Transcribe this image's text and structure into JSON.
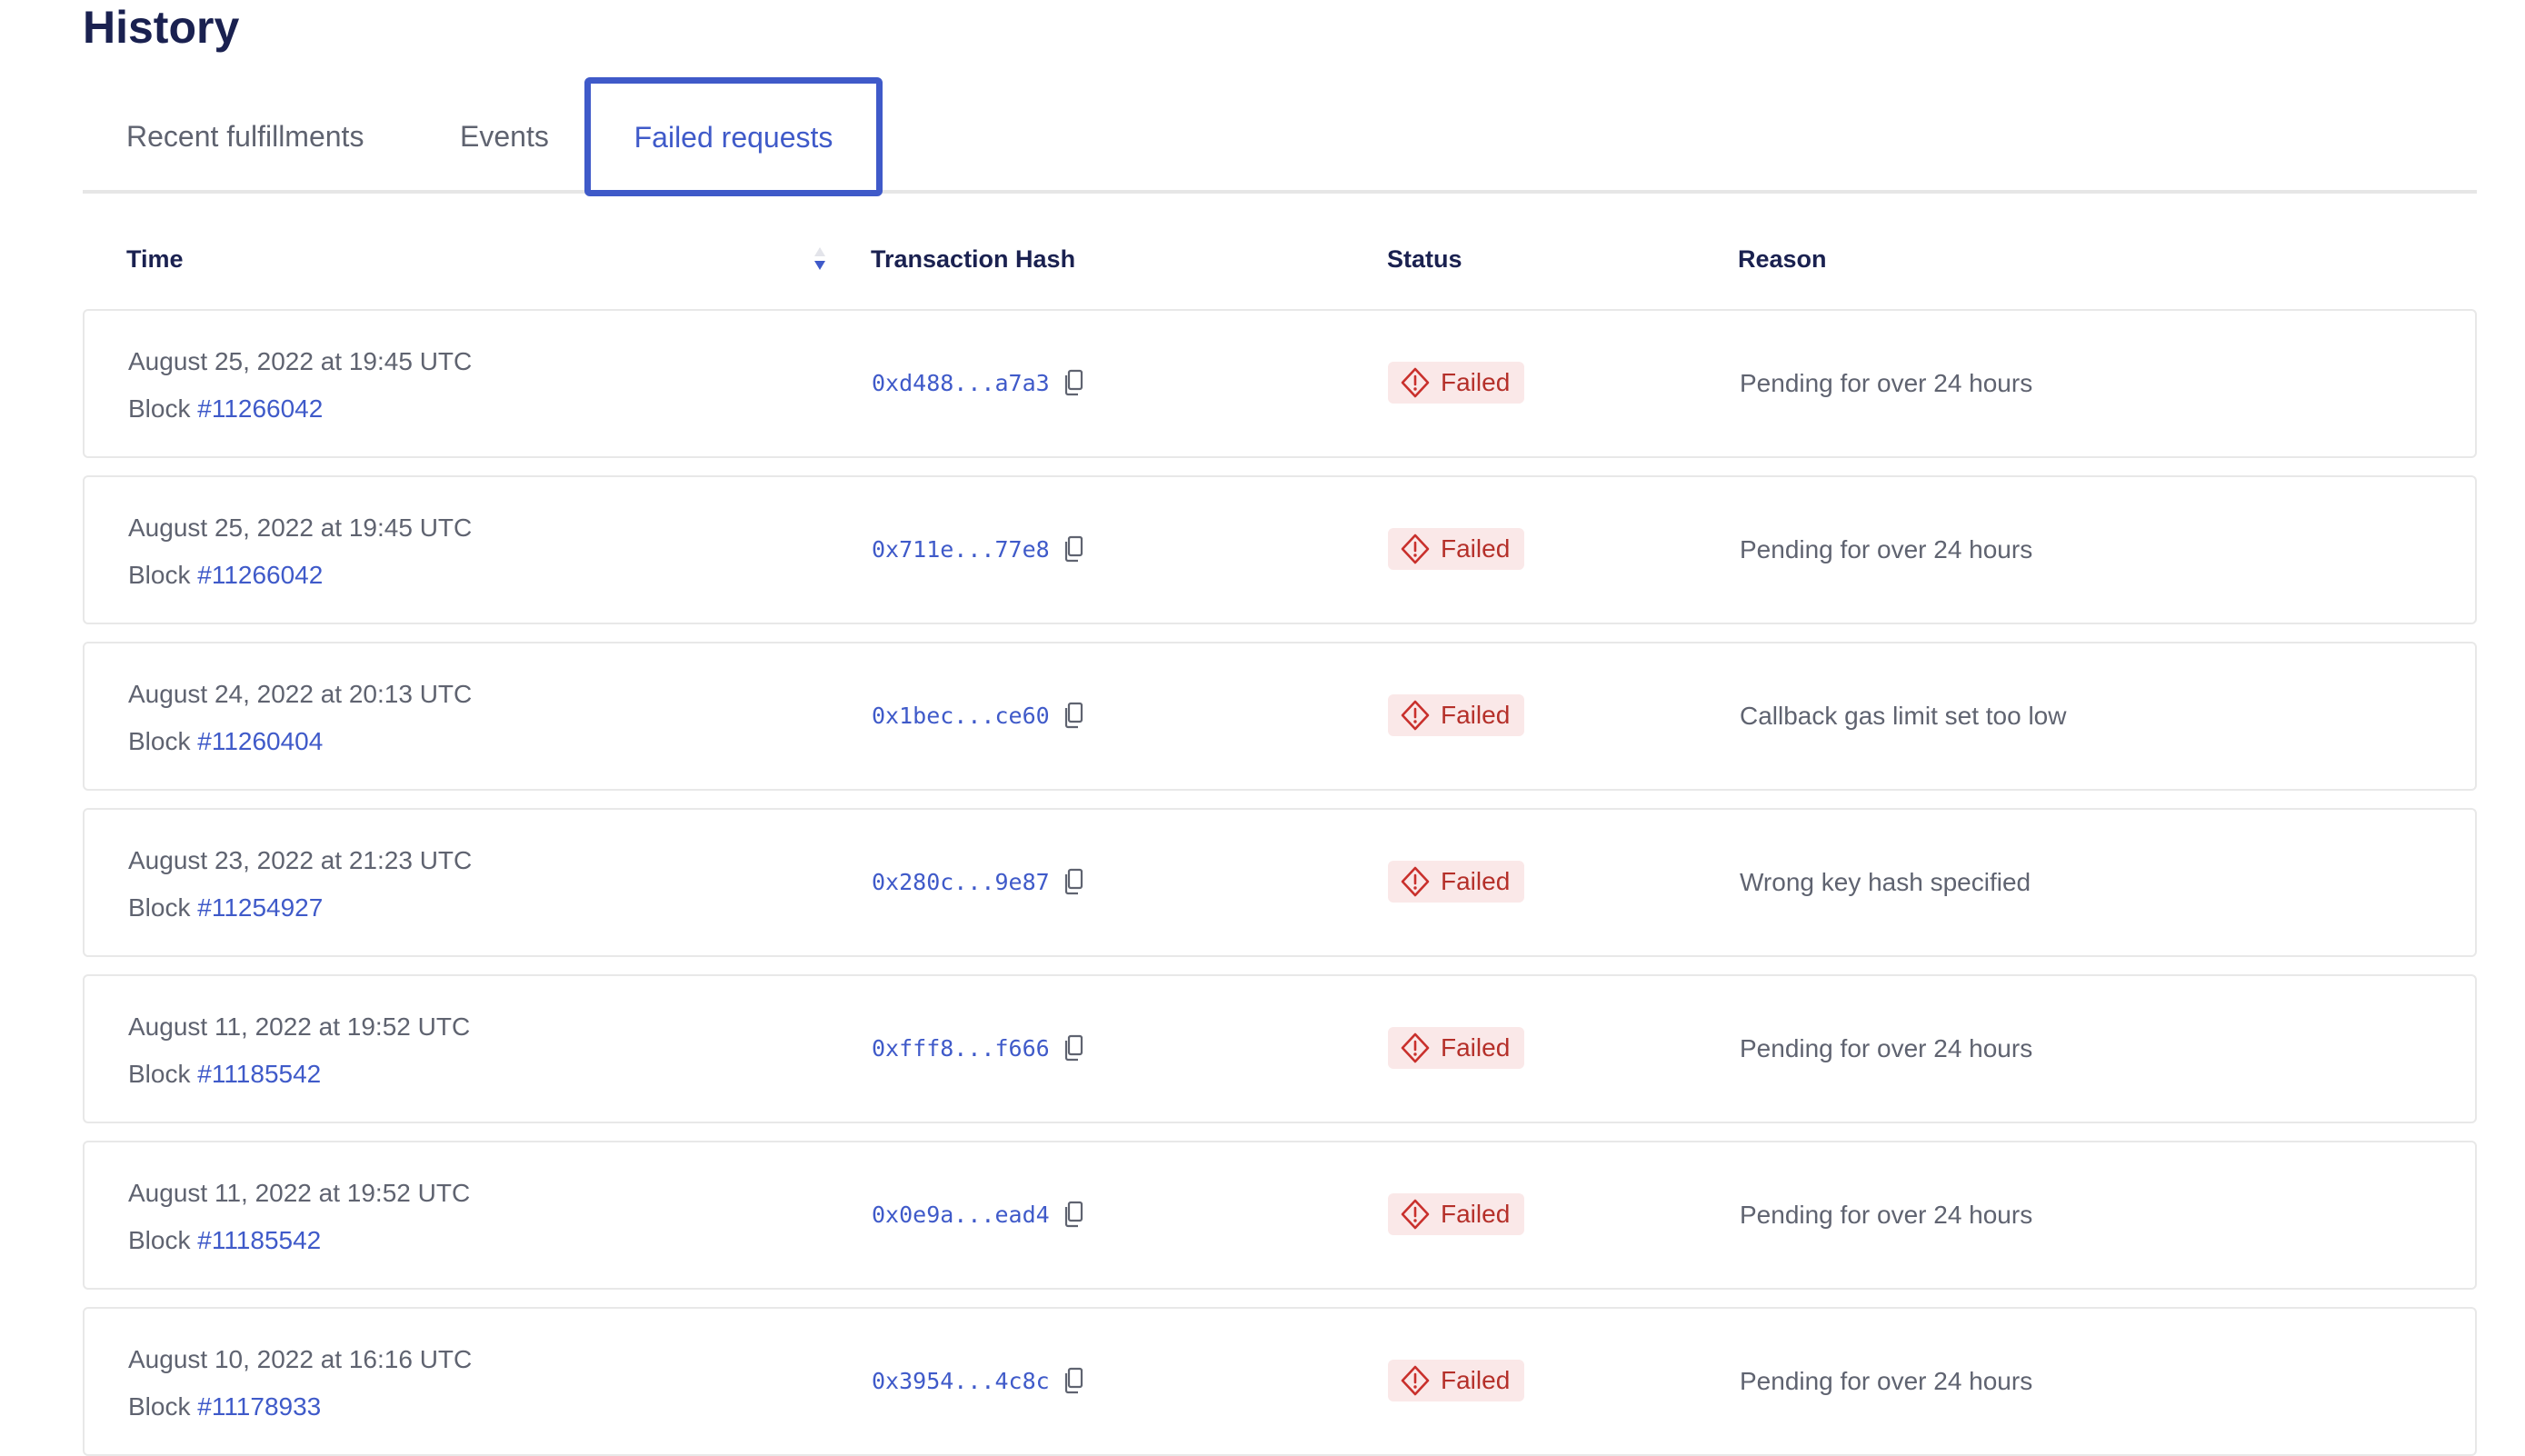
{
  "page": {
    "title": "History"
  },
  "tabs": [
    {
      "label": "Recent fulfillments"
    },
    {
      "label": "Events"
    },
    {
      "label": "Failed requests",
      "active": true
    }
  ],
  "table": {
    "headers": {
      "time": "Time",
      "hash": "Transaction Hash",
      "status": "Status",
      "reason": "Reason"
    },
    "sort": {
      "column": "Time",
      "direction": "descending"
    },
    "block_prefix": "Block",
    "rows": [
      {
        "date": "August 25, 2022 at 19:45 UTC",
        "block": "#11266042",
        "hash": "0xd488...a7a3",
        "status": "Failed",
        "reason": "Pending for over 24 hours"
      },
      {
        "date": "August 25, 2022 at 19:45 UTC",
        "block": "#11266042",
        "hash": "0x711e...77e8",
        "status": "Failed",
        "reason": "Pending for over 24 hours"
      },
      {
        "date": "August 24, 2022 at 20:13 UTC",
        "block": "#11260404",
        "hash": "0x1bec...ce60",
        "status": "Failed",
        "reason": "Callback gas limit set too low"
      },
      {
        "date": "August 23, 2022 at 21:23 UTC",
        "block": "#11254927",
        "hash": "0x280c...9e87",
        "status": "Failed",
        "reason": "Wrong key hash specified"
      },
      {
        "date": "August 11, 2022 at 19:52 UTC",
        "block": "#11185542",
        "hash": "0xfff8...f666",
        "status": "Failed",
        "reason": "Pending for over 24 hours"
      },
      {
        "date": "August 11, 2022 at 19:52 UTC",
        "block": "#11185542",
        "hash": "0x0e9a...ead4",
        "status": "Failed",
        "reason": "Pending for over 24 hours"
      },
      {
        "date": "August 10, 2022 at 16:16 UTC",
        "block": "#11178933",
        "hash": "0x3954...4c8c",
        "status": "Failed",
        "reason": "Pending for over 24 hours"
      }
    ]
  },
  "colors": {
    "accent": "#3f5ac9",
    "title": "#1a2150",
    "failed_text": "#b5302a",
    "failed_bg": "#fae8e8",
    "muted": "#5f6370"
  }
}
